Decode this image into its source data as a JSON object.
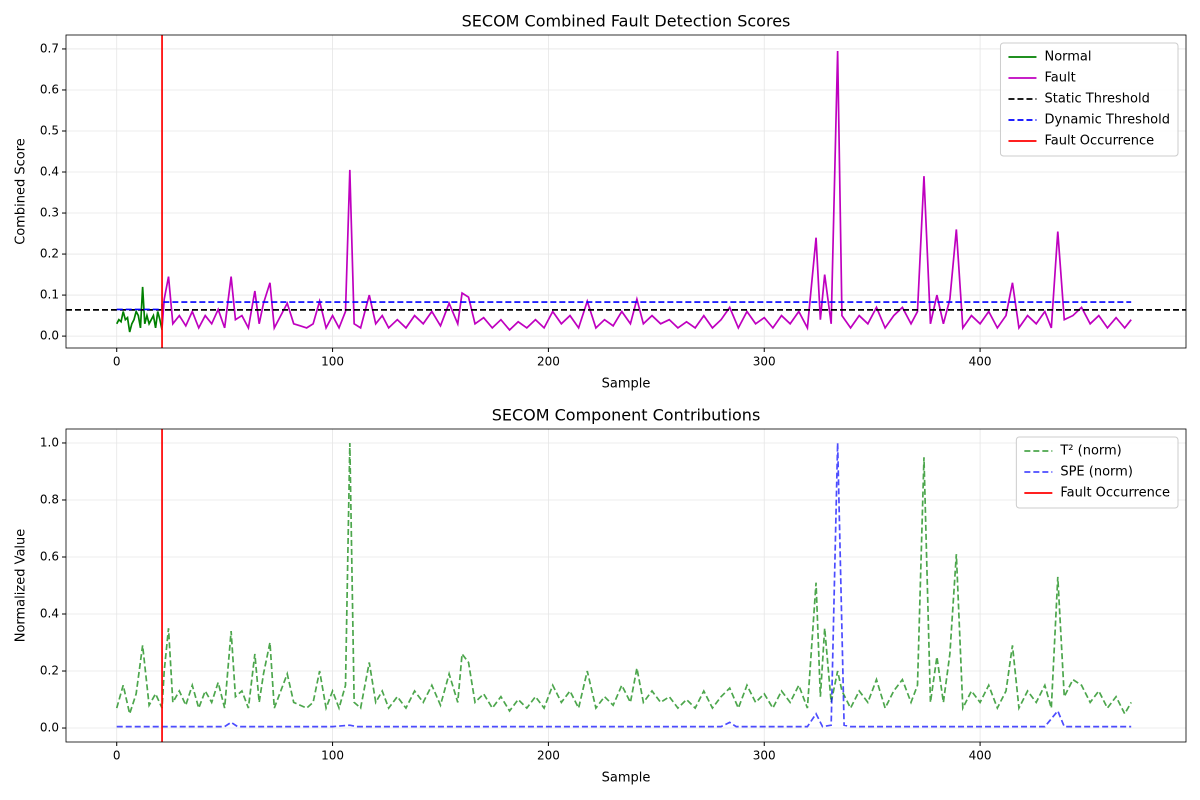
{
  "chart_data": [
    {
      "type": "line",
      "title": "SECOM Combined Fault Detection Scores",
      "xlabel": "Sample",
      "ylabel": "Combined Score",
      "xlim": [
        -23.5,
        495.4
      ],
      "ylim": [
        -0.029,
        0.734
      ],
      "xticks": [
        0,
        100,
        200,
        300,
        400
      ],
      "yticks": [
        {
          "value": 0,
          "label": "0.0"
        },
        0.1,
        0.2,
        0.3,
        0.4,
        0.5,
        0.6,
        0.7
      ],
      "grid": true,
      "legend": "upper right",
      "series": [
        {
          "name": "Normal",
          "color": "#008000",
          "linestyle": "solid",
          "x": [
            0,
            1,
            2,
            3,
            4,
            5,
            6,
            7,
            8,
            9,
            10,
            11,
            12,
            13,
            14,
            15,
            16,
            17,
            18,
            19,
            20,
            21
          ],
          "values": [
            0.03,
            0.04,
            0.035,
            0.06,
            0.04,
            0.045,
            0.01,
            0.03,
            0.04,
            0.06,
            0.05,
            0.02,
            0.12,
            0.03,
            0.05,
            0.03,
            0.04,
            0.05,
            0.02,
            0.06,
            0.04,
            0.015
          ]
        },
        {
          "name": "Fault",
          "color": "#bf00bf",
          "linestyle": "solid",
          "x": [
            21,
            22,
            24,
            26,
            29,
            32,
            35,
            38,
            41,
            44,
            47,
            50,
            53,
            55,
            58,
            61,
            64,
            66,
            68,
            71,
            73,
            76,
            79,
            82,
            85,
            88,
            91,
            94,
            97,
            100,
            103,
            106,
            108,
            110,
            113,
            117,
            120,
            123,
            126,
            130,
            134,
            138,
            142,
            146,
            150,
            154,
            158,
            160,
            163,
            166,
            170,
            174,
            178,
            182,
            186,
            190,
            194,
            198,
            202,
            206,
            210,
            214,
            218,
            222,
            226,
            230,
            234,
            238,
            241,
            244,
            248,
            252,
            256,
            260,
            264,
            268,
            272,
            276,
            280,
            284,
            288,
            292,
            296,
            300,
            304,
            308,
            312,
            316,
            320,
            324,
            326,
            328,
            331,
            334,
            336,
            340,
            344,
            348,
            352,
            356,
            360,
            364,
            368,
            371,
            374,
            377,
            380,
            383,
            386,
            389,
            392,
            396,
            400,
            404,
            408,
            412,
            415,
            418,
            422,
            426,
            430,
            433,
            436,
            439,
            443,
            447,
            451,
            455,
            459,
            463,
            467,
            470
          ],
          "values": [
            0.02,
            0.09,
            0.145,
            0.03,
            0.05,
            0.025,
            0.06,
            0.02,
            0.05,
            0.03,
            0.065,
            0.02,
            0.145,
            0.04,
            0.05,
            0.02,
            0.11,
            0.03,
            0.08,
            0.13,
            0.02,
            0.05,
            0.08,
            0.03,
            0.025,
            0.02,
            0.03,
            0.085,
            0.02,
            0.05,
            0.02,
            0.06,
            0.405,
            0.03,
            0.02,
            0.1,
            0.03,
            0.05,
            0.02,
            0.04,
            0.02,
            0.05,
            0.03,
            0.06,
            0.025,
            0.08,
            0.03,
            0.105,
            0.095,
            0.03,
            0.045,
            0.02,
            0.04,
            0.015,
            0.035,
            0.02,
            0.04,
            0.02,
            0.06,
            0.03,
            0.05,
            0.02,
            0.085,
            0.02,
            0.04,
            0.025,
            0.06,
            0.03,
            0.09,
            0.03,
            0.05,
            0.03,
            0.04,
            0.02,
            0.035,
            0.02,
            0.05,
            0.02,
            0.04,
            0.07,
            0.02,
            0.06,
            0.03,
            0.045,
            0.02,
            0.05,
            0.03,
            0.06,
            0.02,
            0.24,
            0.04,
            0.15,
            0.03,
            0.695,
            0.05,
            0.02,
            0.05,
            0.03,
            0.07,
            0.02,
            0.05,
            0.07,
            0.03,
            0.06,
            0.39,
            0.03,
            0.1,
            0.03,
            0.09,
            0.26,
            0.02,
            0.05,
            0.03,
            0.06,
            0.02,
            0.05,
            0.13,
            0.02,
            0.05,
            0.03,
            0.06,
            0.02,
            0.255,
            0.04,
            0.05,
            0.07,
            0.03,
            0.05,
            0.02,
            0.045,
            0.02,
            0.04
          ]
        },
        {
          "name": "Static Threshold",
          "color": "#000000",
          "linestyle": "dashed",
          "hline": 0.064
        },
        {
          "name": "Dynamic Threshold",
          "color": "#0000ff",
          "linestyle": "dashed",
          "x": [
            0,
            21,
            21,
            470
          ],
          "values": [
            0.065,
            0.065,
            0.083,
            0.083
          ]
        },
        {
          "name": "Fault Occurrence",
          "color": "#ff0000",
          "linestyle": "solid",
          "vline": 21
        }
      ]
    },
    {
      "type": "line",
      "title": "SECOM Component Contributions",
      "xlabel": "Sample",
      "ylabel": "Normalized Value",
      "xlim": [
        -23.5,
        495.4
      ],
      "ylim": [
        -0.049,
        1.049
      ],
      "xticks": [
        0,
        100,
        200,
        300,
        400
      ],
      "yticks": [
        {
          "value": 0,
          "label": "0.0"
        },
        0.2,
        0.4,
        0.6,
        0.8,
        {
          "value": 1,
          "label": "1.0"
        }
      ],
      "grid": true,
      "legend": "upper right",
      "series": [
        {
          "name": "T² (norm)",
          "color": "#008000",
          "linestyle": "dashed",
          "alpha": 0.7,
          "x": [
            0,
            3,
            6,
            9,
            12,
            15,
            18,
            21,
            22,
            24,
            26,
            29,
            32,
            35,
            38,
            41,
            44,
            47,
            50,
            53,
            55,
            58,
            61,
            64,
            66,
            68,
            71,
            73,
            76,
            79,
            82,
            85,
            88,
            91,
            94,
            97,
            100,
            103,
            106,
            108,
            110,
            113,
            117,
            120,
            123,
            126,
            130,
            134,
            138,
            142,
            146,
            150,
            154,
            158,
            160,
            163,
            166,
            170,
            174,
            178,
            182,
            186,
            190,
            194,
            198,
            202,
            206,
            210,
            214,
            218,
            222,
            226,
            230,
            234,
            238,
            241,
            244,
            248,
            252,
            256,
            260,
            264,
            268,
            272,
            276,
            280,
            284,
            288,
            292,
            296,
            300,
            304,
            308,
            312,
            316,
            320,
            324,
            326,
            328,
            331,
            334,
            336,
            340,
            344,
            348,
            352,
            356,
            360,
            364,
            368,
            371,
            374,
            377,
            380,
            383,
            386,
            389,
            392,
            396,
            400,
            404,
            408,
            412,
            415,
            418,
            422,
            426,
            430,
            433,
            436,
            439,
            443,
            447,
            451,
            455,
            459,
            463,
            467,
            470
          ],
          "values": [
            0.07,
            0.15,
            0.05,
            0.12,
            0.29,
            0.08,
            0.12,
            0.07,
            0.2,
            0.35,
            0.09,
            0.13,
            0.08,
            0.15,
            0.07,
            0.13,
            0.09,
            0.16,
            0.07,
            0.34,
            0.11,
            0.13,
            0.07,
            0.26,
            0.09,
            0.19,
            0.3,
            0.07,
            0.13,
            0.19,
            0.09,
            0.08,
            0.07,
            0.09,
            0.2,
            0.07,
            0.13,
            0.07,
            0.15,
            1.0,
            0.09,
            0.07,
            0.23,
            0.09,
            0.13,
            0.07,
            0.11,
            0.07,
            0.13,
            0.09,
            0.15,
            0.08,
            0.19,
            0.09,
            0.26,
            0.23,
            0.09,
            0.12,
            0.07,
            0.11,
            0.06,
            0.1,
            0.07,
            0.11,
            0.07,
            0.15,
            0.09,
            0.13,
            0.07,
            0.2,
            0.07,
            0.11,
            0.08,
            0.15,
            0.09,
            0.21,
            0.09,
            0.13,
            0.09,
            0.11,
            0.07,
            0.1,
            0.07,
            0.13,
            0.07,
            0.11,
            0.14,
            0.07,
            0.15,
            0.09,
            0.12,
            0.07,
            0.13,
            0.09,
            0.15,
            0.07,
            0.51,
            0.11,
            0.35,
            0.09,
            0.2,
            0.13,
            0.07,
            0.13,
            0.09,
            0.17,
            0.07,
            0.13,
            0.17,
            0.09,
            0.15,
            0.95,
            0.09,
            0.25,
            0.09,
            0.26,
            0.61,
            0.07,
            0.13,
            0.09,
            0.15,
            0.07,
            0.13,
            0.29,
            0.07,
            0.13,
            0.09,
            0.15,
            0.07,
            0.53,
            0.11,
            0.17,
            0.15,
            0.09,
            0.13,
            0.07,
            0.11,
            0.05,
            0.09
          ]
        },
        {
          "name": "SPE (norm)",
          "color": "#0000ff",
          "linestyle": "dashed",
          "alpha": 0.7,
          "x": [
            0,
            50,
            53,
            56,
            100,
            108,
            111,
            280,
            284,
            287,
            320,
            324,
            327,
            331,
            334,
            337,
            340,
            430,
            436,
            439,
            470
          ],
          "values": [
            0.005,
            0.005,
            0.02,
            0.005,
            0.005,
            0.01,
            0.005,
            0.005,
            0.02,
            0.005,
            0.005,
            0.05,
            0.005,
            0.01,
            1.0,
            0.01,
            0.005,
            0.005,
            0.06,
            0.005,
            0.005
          ]
        },
        {
          "name": "Fault Occurrence",
          "color": "#ff0000",
          "linestyle": "solid",
          "vline": 21
        }
      ]
    }
  ]
}
